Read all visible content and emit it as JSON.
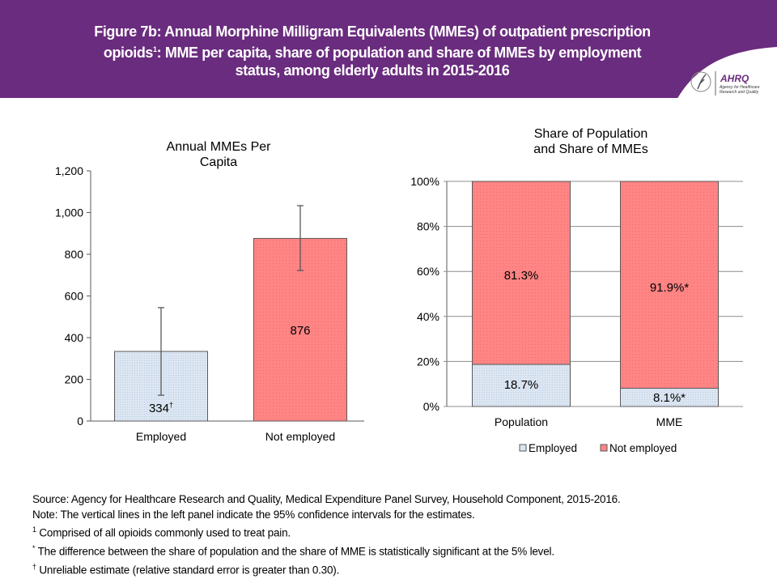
{
  "header": {
    "title_line1": "Figure 7b: Annual Morphine Milligram Equivalents (MMEs) of outpatient prescription",
    "title_line2_pre": "opioids",
    "title_line2_sup": "1",
    "title_line2_post": ": MME per capita, share of population and share of MMEs by employment",
    "title_line3": "status, among elderly adults in 2015-2016",
    "logo_text": "AHRQ",
    "logo_sub1": "Agency for Healthcare",
    "logo_sub2": "Research and Quality"
  },
  "colors": {
    "header_bg": "#6a2c7e",
    "employed": "#dce6f2",
    "not_employed": "#ff8585",
    "axis": "#595959"
  },
  "chart_data": [
    {
      "type": "bar",
      "title_line1": "Annual MMEs Per",
      "title_line2": "Capita",
      "categories": [
        "Employed",
        "Not employed"
      ],
      "values": [
        334,
        876
      ],
      "value_labels": [
        "334",
        "876"
      ],
      "value_label_marks": [
        "†",
        ""
      ],
      "error_bars": [
        [
          124,
          544
        ],
        [
          722,
          1033
        ]
      ],
      "ylim": [
        0,
        1200
      ],
      "yticks": [
        0,
        200,
        400,
        600,
        800,
        1000,
        1200
      ],
      "ytick_labels": [
        "0",
        "200",
        "400",
        "600",
        "800",
        "1,000",
        "1,200"
      ],
      "xlabel": "",
      "ylabel": "",
      "grid": false
    },
    {
      "type": "bar",
      "stacked": true,
      "title_line1": "Share of Population",
      "title_line2": "and Share of MMEs",
      "categories": [
        "Population",
        "MME"
      ],
      "series": [
        {
          "name": "Employed",
          "values": [
            18.7,
            8.1
          ],
          "labels": [
            "18.7%",
            "8.1%*"
          ]
        },
        {
          "name": "Not employed",
          "values": [
            81.3,
            91.9
          ],
          "labels": [
            "81.3%",
            "91.9%*"
          ]
        }
      ],
      "ylim": [
        0,
        100
      ],
      "yticks": [
        0,
        20,
        40,
        60,
        80,
        100
      ],
      "ytick_labels": [
        "0%",
        "20%",
        "40%",
        "60%",
        "80%",
        "100%"
      ],
      "grid": true,
      "legend": [
        "Employed",
        "Not employed"
      ],
      "legend_position": "bottom"
    }
  ],
  "notes": {
    "source": "Source: Agency for Healthcare Research and Quality, Medical Expenditure Panel Survey, Household Component, 2015-2016.",
    "note": "Note: The vertical lines in the left panel indicate the 95% confidence intervals for the estimates.",
    "fn1_mark": "1",
    "fn1": " Comprised of all opioids commonly used to treat pain.",
    "fn2_mark": "*",
    "fn2": " The difference between the share of population and the share of MME is statistically significant at the 5% level.",
    "fn3_mark": "†",
    "fn3": " Unreliable estimate (relative standard error is greater than 0.30)."
  }
}
